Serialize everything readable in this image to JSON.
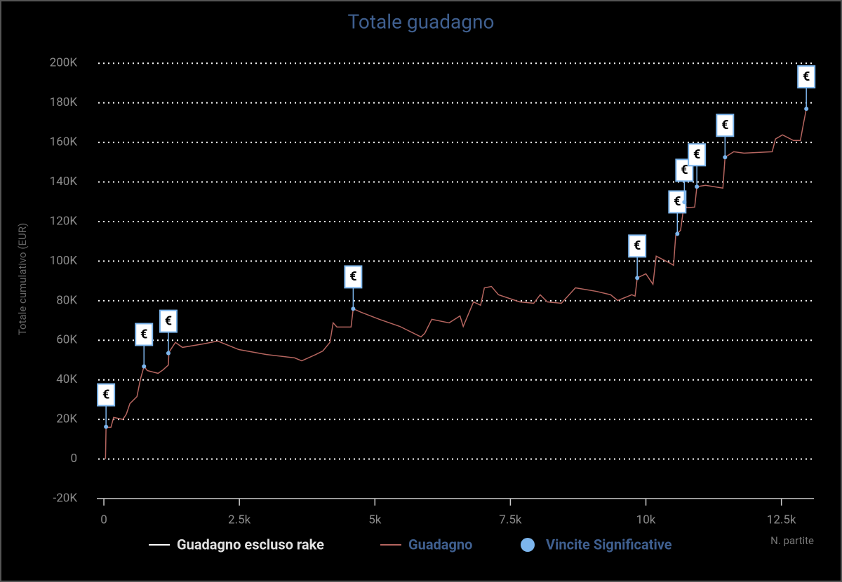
{
  "chart_data": {
    "type": "line",
    "title": "Totale guadagno",
    "y_label": "Totale cumulativo (EUR)",
    "x_label": "N. partite",
    "xlim": [
      -130,
      13100
    ],
    "ylim": [
      -20000,
      210000
    ],
    "xticks": [
      0,
      {
        "value": 2500,
        "label": "2.5k"
      },
      {
        "value": 5000,
        "label": "5k"
      },
      {
        "value": 7500,
        "label": "7.5k"
      },
      {
        "value": 10000,
        "label": "10k"
      },
      {
        "value": 12500,
        "label": "12.5k"
      }
    ],
    "yticks": [
      {
        "value": -20000,
        "label": "-20K"
      },
      0,
      {
        "value": 20000,
        "label": "20K"
      },
      {
        "value": 40000,
        "label": "40K"
      },
      {
        "value": 60000,
        "label": "60K"
      },
      {
        "value": 80000,
        "label": "80K"
      },
      {
        "value": 100000,
        "label": "100K"
      },
      {
        "value": 120000,
        "label": "120K"
      },
      {
        "value": 140000,
        "label": "140K"
      },
      {
        "value": 160000,
        "label": "160K"
      },
      {
        "value": 180000,
        "label": "180K"
      },
      {
        "value": 200000,
        "label": "200K"
      }
    ],
    "grid": true,
    "series": [
      {
        "name": "Guadagno escluso rake",
        "color": "#ffffff"
      },
      {
        "name": "Guadagno",
        "color": "#b5655f",
        "x": [
          30,
          40,
          130,
          180,
          350,
          415,
          480,
          610,
          675,
          740,
          800,
          1000,
          1090,
          1190,
          1200,
          1320,
          1450,
          1840,
          2100,
          2490,
          3000,
          3520,
          3650,
          3910,
          4040,
          4170,
          4230,
          4300,
          4560,
          4600,
          4750,
          5080,
          5460,
          5850,
          5920,
          6050,
          6370,
          6570,
          6630,
          6820,
          6950,
          7020,
          7150,
          7280,
          7670,
          7930,
          8050,
          8180,
          8440,
          8700,
          9090,
          9350,
          9480,
          9740,
          9800,
          9840,
          10000,
          10130,
          10190,
          10450,
          10510,
          10550,
          10640,
          10710,
          10750,
          10900,
          10940,
          11100,
          11420,
          11460,
          11620,
          11810,
          12330,
          12390,
          12520,
          12720,
          12850,
          12910,
          12960
        ],
        "values": [
          0,
          16000,
          16000,
          21000,
          20000,
          22700,
          28000,
          31500,
          40400,
          46800,
          44700,
          43300,
          45000,
          47500,
          53900,
          58900,
          56400,
          58200,
          59600,
          55300,
          52800,
          51100,
          49600,
          52800,
          54600,
          58900,
          68800,
          66700,
          66700,
          75900,
          74100,
          70600,
          67000,
          61700,
          63500,
          70600,
          68800,
          72300,
          67000,
          79400,
          77700,
          86500,
          87200,
          83000,
          79400,
          78700,
          83000,
          79400,
          78700,
          86500,
          84700,
          83000,
          80100,
          83000,
          82300,
          91500,
          93600,
          88300,
          102500,
          98900,
          97900,
          113100,
          115600,
          129800,
          127000,
          127300,
          137600,
          138300,
          136900,
          152500,
          155300,
          154600,
          155300,
          161700,
          163800,
          161000,
          161000,
          169900,
          177000
        ]
      },
      {
        "name": "Vincite Significative",
        "color": "#7cb5ec",
        "type": "flags",
        "x": [
          40,
          740,
          1190,
          4600,
          9840,
          10580,
          10710,
          10940,
          11460,
          12960
        ],
        "values": [
          16300,
          46800,
          53500,
          75900,
          91500,
          113800,
          129800,
          137600,
          152500,
          177000
        ],
        "labels": [
          "€",
          "€",
          "€",
          "€",
          "€",
          "€",
          "€",
          "€",
          "€",
          "€"
        ]
      }
    ]
  }
}
